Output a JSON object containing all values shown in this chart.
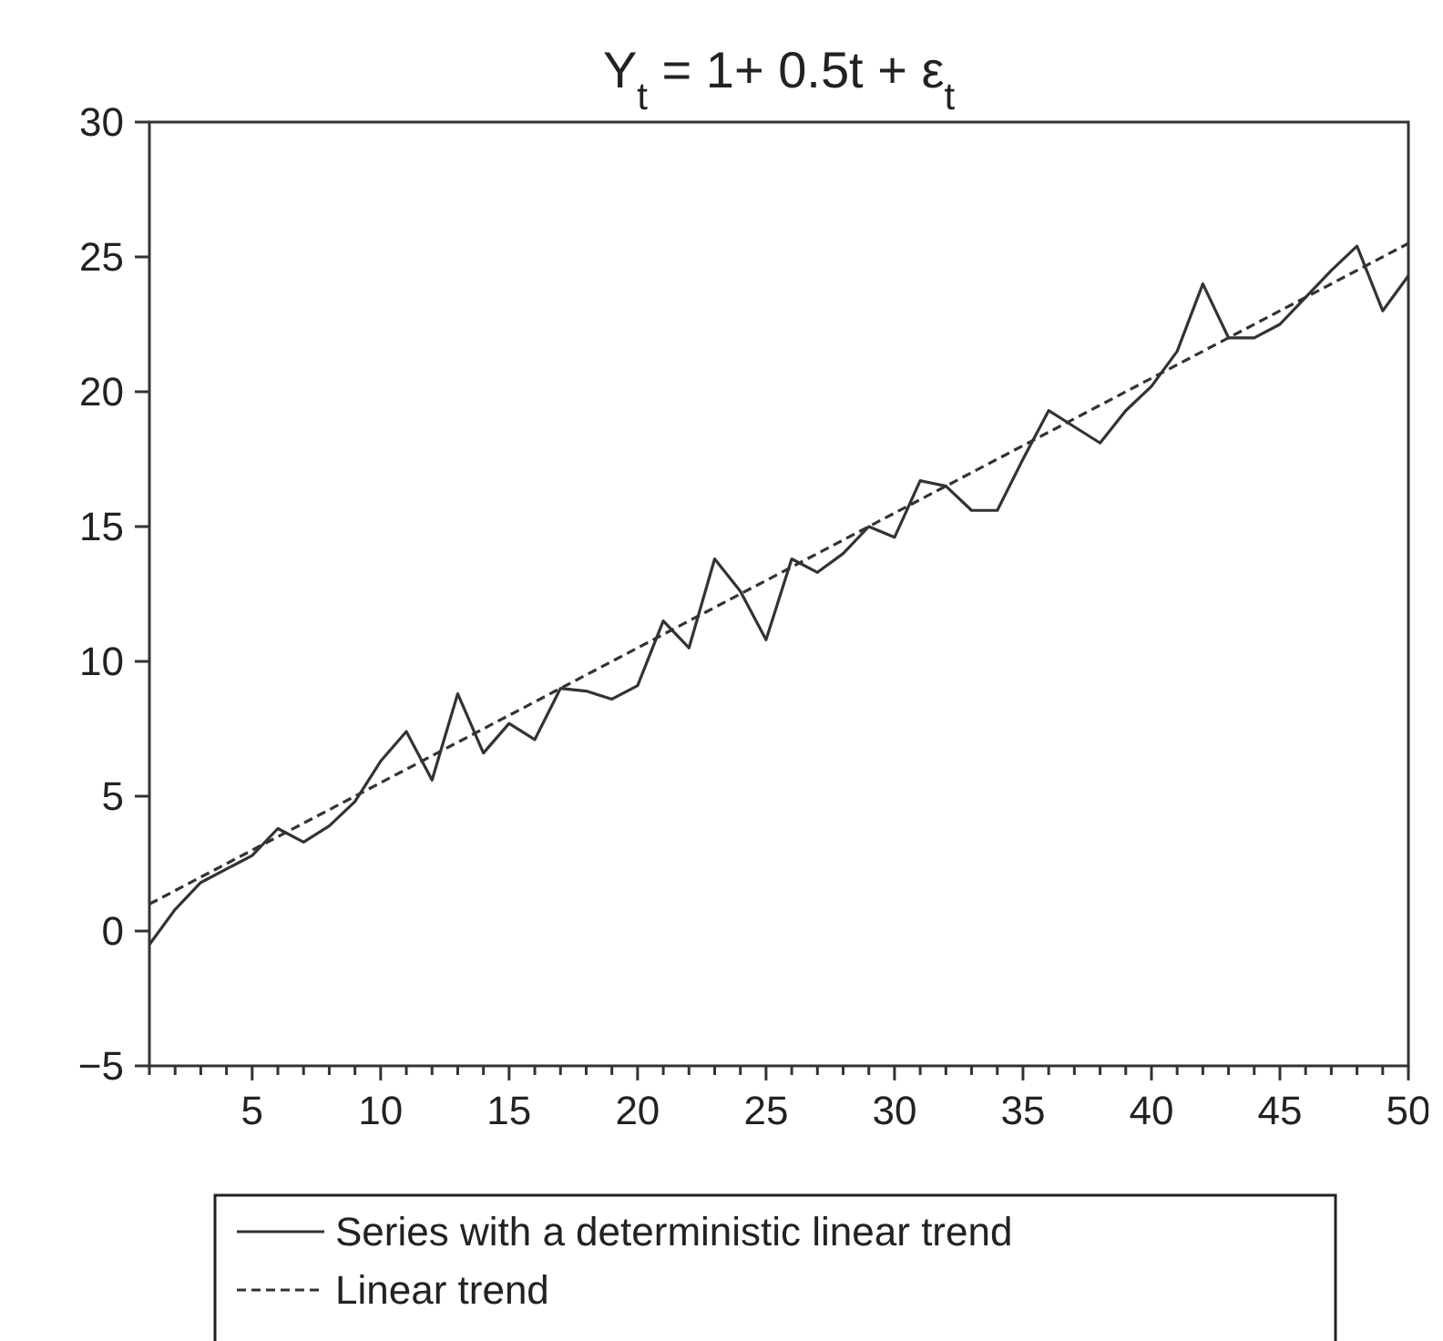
{
  "chart_data": {
    "type": "line",
    "title": "Y$_{t}$ = 1+ 0.5t + ε$_{t}$",
    "x": [
      1,
      2,
      3,
      4,
      5,
      6,
      7,
      8,
      9,
      10,
      11,
      12,
      13,
      14,
      15,
      16,
      17,
      18,
      19,
      20,
      21,
      22,
      23,
      24,
      25,
      26,
      27,
      28,
      29,
      30,
      31,
      32,
      33,
      34,
      35,
      36,
      37,
      38,
      39,
      40,
      41,
      42,
      43,
      44,
      45,
      46,
      47,
      48,
      49,
      50
    ],
    "series": [
      {
        "name": "Series with a deterministic linear trend",
        "color": "#333333",
        "line_style": "solid",
        "values": [
          -0.5,
          0.8,
          1.8,
          2.3,
          2.8,
          3.8,
          3.3,
          3.9,
          4.8,
          6.3,
          7.4,
          5.6,
          8.8,
          6.6,
          7.7,
          7.1,
          9.0,
          8.9,
          8.6,
          9.1,
          11.5,
          10.5,
          13.8,
          12.6,
          10.8,
          13.8,
          13.3,
          14.0,
          15.0,
          14.6,
          16.7,
          16.5,
          15.6,
          15.6,
          17.5,
          19.3,
          18.7,
          18.1,
          19.3,
          20.2,
          21.5,
          24.0,
          22.0,
          22.0,
          22.5,
          23.5,
          24.5,
          25.4,
          23.0,
          24.3
        ]
      },
      {
        "name": "Linear trend",
        "color": "#333333",
        "line_style": "dashed",
        "x": [
          1,
          50
        ],
        "values": [
          1.0,
          25.5
        ]
      }
    ],
    "xlim": [
      1,
      50
    ],
    "xticks": [
      {
        "value": 1,
        "label": null
      },
      {
        "value": 2,
        "label": null
      },
      {
        "value": 3,
        "label": null
      },
      {
        "value": 4,
        "label": null
      },
      5,
      {
        "value": 6,
        "label": null
      },
      {
        "value": 7,
        "label": null
      },
      {
        "value": 8,
        "label": null
      },
      {
        "value": 9,
        "label": null
      },
      10,
      {
        "value": 11,
        "label": null
      },
      {
        "value": 12,
        "label": null
      },
      {
        "value": 13,
        "label": null
      },
      {
        "value": 14,
        "label": null
      },
      15,
      {
        "value": 16,
        "label": null
      },
      {
        "value": 17,
        "label": null
      },
      {
        "value": 18,
        "label": null
      },
      {
        "value": 19,
        "label": null
      },
      20,
      {
        "value": 21,
        "label": null
      },
      {
        "value": 22,
        "label": null
      },
      {
        "value": 23,
        "label": null
      },
      {
        "value": 24,
        "label": null
      },
      25,
      {
        "value": 26,
        "label": null
      },
      {
        "value": 27,
        "label": null
      },
      {
        "value": 28,
        "label": null
      },
      {
        "value": 29,
        "label": null
      },
      30,
      {
        "value": 31,
        "label": null
      },
      {
        "value": 32,
        "label": null
      },
      {
        "value": 33,
        "label": null
      },
      {
        "value": 34,
        "label": null
      },
      35,
      {
        "value": 36,
        "label": null
      },
      {
        "value": 37,
        "label": null
      },
      {
        "value": 38,
        "label": null
      },
      {
        "value": 39,
        "label": null
      },
      40,
      {
        "value": 41,
        "label": null
      },
      {
        "value": 42,
        "label": null
      },
      {
        "value": 43,
        "label": null
      },
      {
        "value": 44,
        "label": null
      },
      45,
      {
        "value": 46,
        "label": null
      },
      {
        "value": 47,
        "label": null
      },
      {
        "value": 48,
        "label": null
      },
      {
        "value": 49,
        "label": null
      },
      50
    ],
    "ylim": [
      -5,
      30
    ],
    "yticks": [
      -5,
      0,
      5,
      10,
      15,
      20,
      25,
      30
    ],
    "grid": false,
    "legend": "bottom",
    "marker": "none"
  }
}
